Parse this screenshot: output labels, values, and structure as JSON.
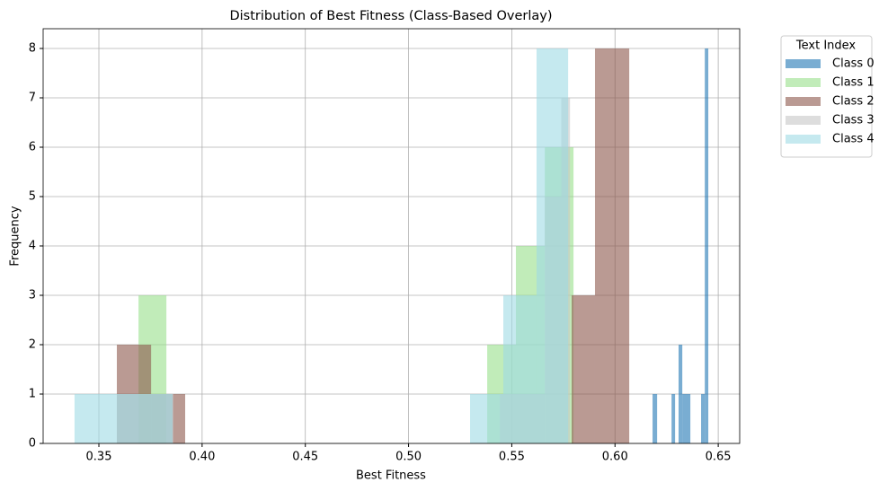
{
  "chart_data": {
    "type": "histogram",
    "title": "Distribution of Best Fitness (Class-Based Overlay)",
    "x_label": "Best Fitness",
    "y_label": "Frequency",
    "legend_title": "Text Index",
    "legend_position": "outside upper right",
    "grid": true,
    "alpha": 0.6,
    "xlim": [
      0.323,
      0.6604
    ],
    "ylim": [
      0,
      8.4
    ],
    "xticks": [
      {
        "value": 0.35,
        "label": "0.35"
      },
      {
        "value": 0.4,
        "label": "0.40"
      },
      {
        "value": 0.45,
        "label": "0.45"
      },
      {
        "value": 0.5,
        "label": "0.50"
      },
      {
        "value": 0.55,
        "label": "0.55"
      },
      {
        "value": 0.6,
        "label": "0.60"
      },
      {
        "value": 0.65,
        "label": "0.65"
      }
    ],
    "yticks": [
      0,
      1,
      2,
      3,
      4,
      5,
      6,
      7,
      8
    ],
    "series": [
      {
        "name": "Class 0",
        "color": "#1f77b4",
        "bins": [
          0.6182,
          0.6204,
          0.6274,
          0.6291,
          0.6308,
          0.6326,
          0.6365,
          0.6417,
          0.6435,
          0.6452
        ],
        "values": [
          1,
          0,
          1,
          0,
          2,
          1,
          0,
          1,
          8
        ]
      },
      {
        "name": "Class 1",
        "color": "#98df8a",
        "bins": [
          0.3692,
          0.3827,
          0.5381,
          0.5459,
          0.552,
          0.566,
          0.5799
        ],
        "values": [
          3,
          0,
          2,
          2,
          4,
          6
        ]
      },
      {
        "name": "Class 2",
        "color": "#8c564b",
        "bins": [
          0.3587,
          0.3753,
          0.3918,
          0.579,
          0.5903,
          0.6069
        ],
        "values": [
          2,
          1,
          0,
          3,
          8
        ]
      },
      {
        "name": "Class 3",
        "color": "#c7c7c7",
        "bins": [
          0.3587,
          0.3861,
          0.5442,
          0.566,
          0.574,
          0.5782
        ],
        "values": [
          1,
          0,
          1,
          5,
          7
        ]
      },
      {
        "name": "Class 4",
        "color": "#9edae5",
        "bins": [
          0.3382,
          0.3857,
          0.5298,
          0.5459,
          0.562,
          0.5773
        ],
        "values": [
          1,
          0,
          1,
          3,
          8
        ]
      }
    ]
  }
}
